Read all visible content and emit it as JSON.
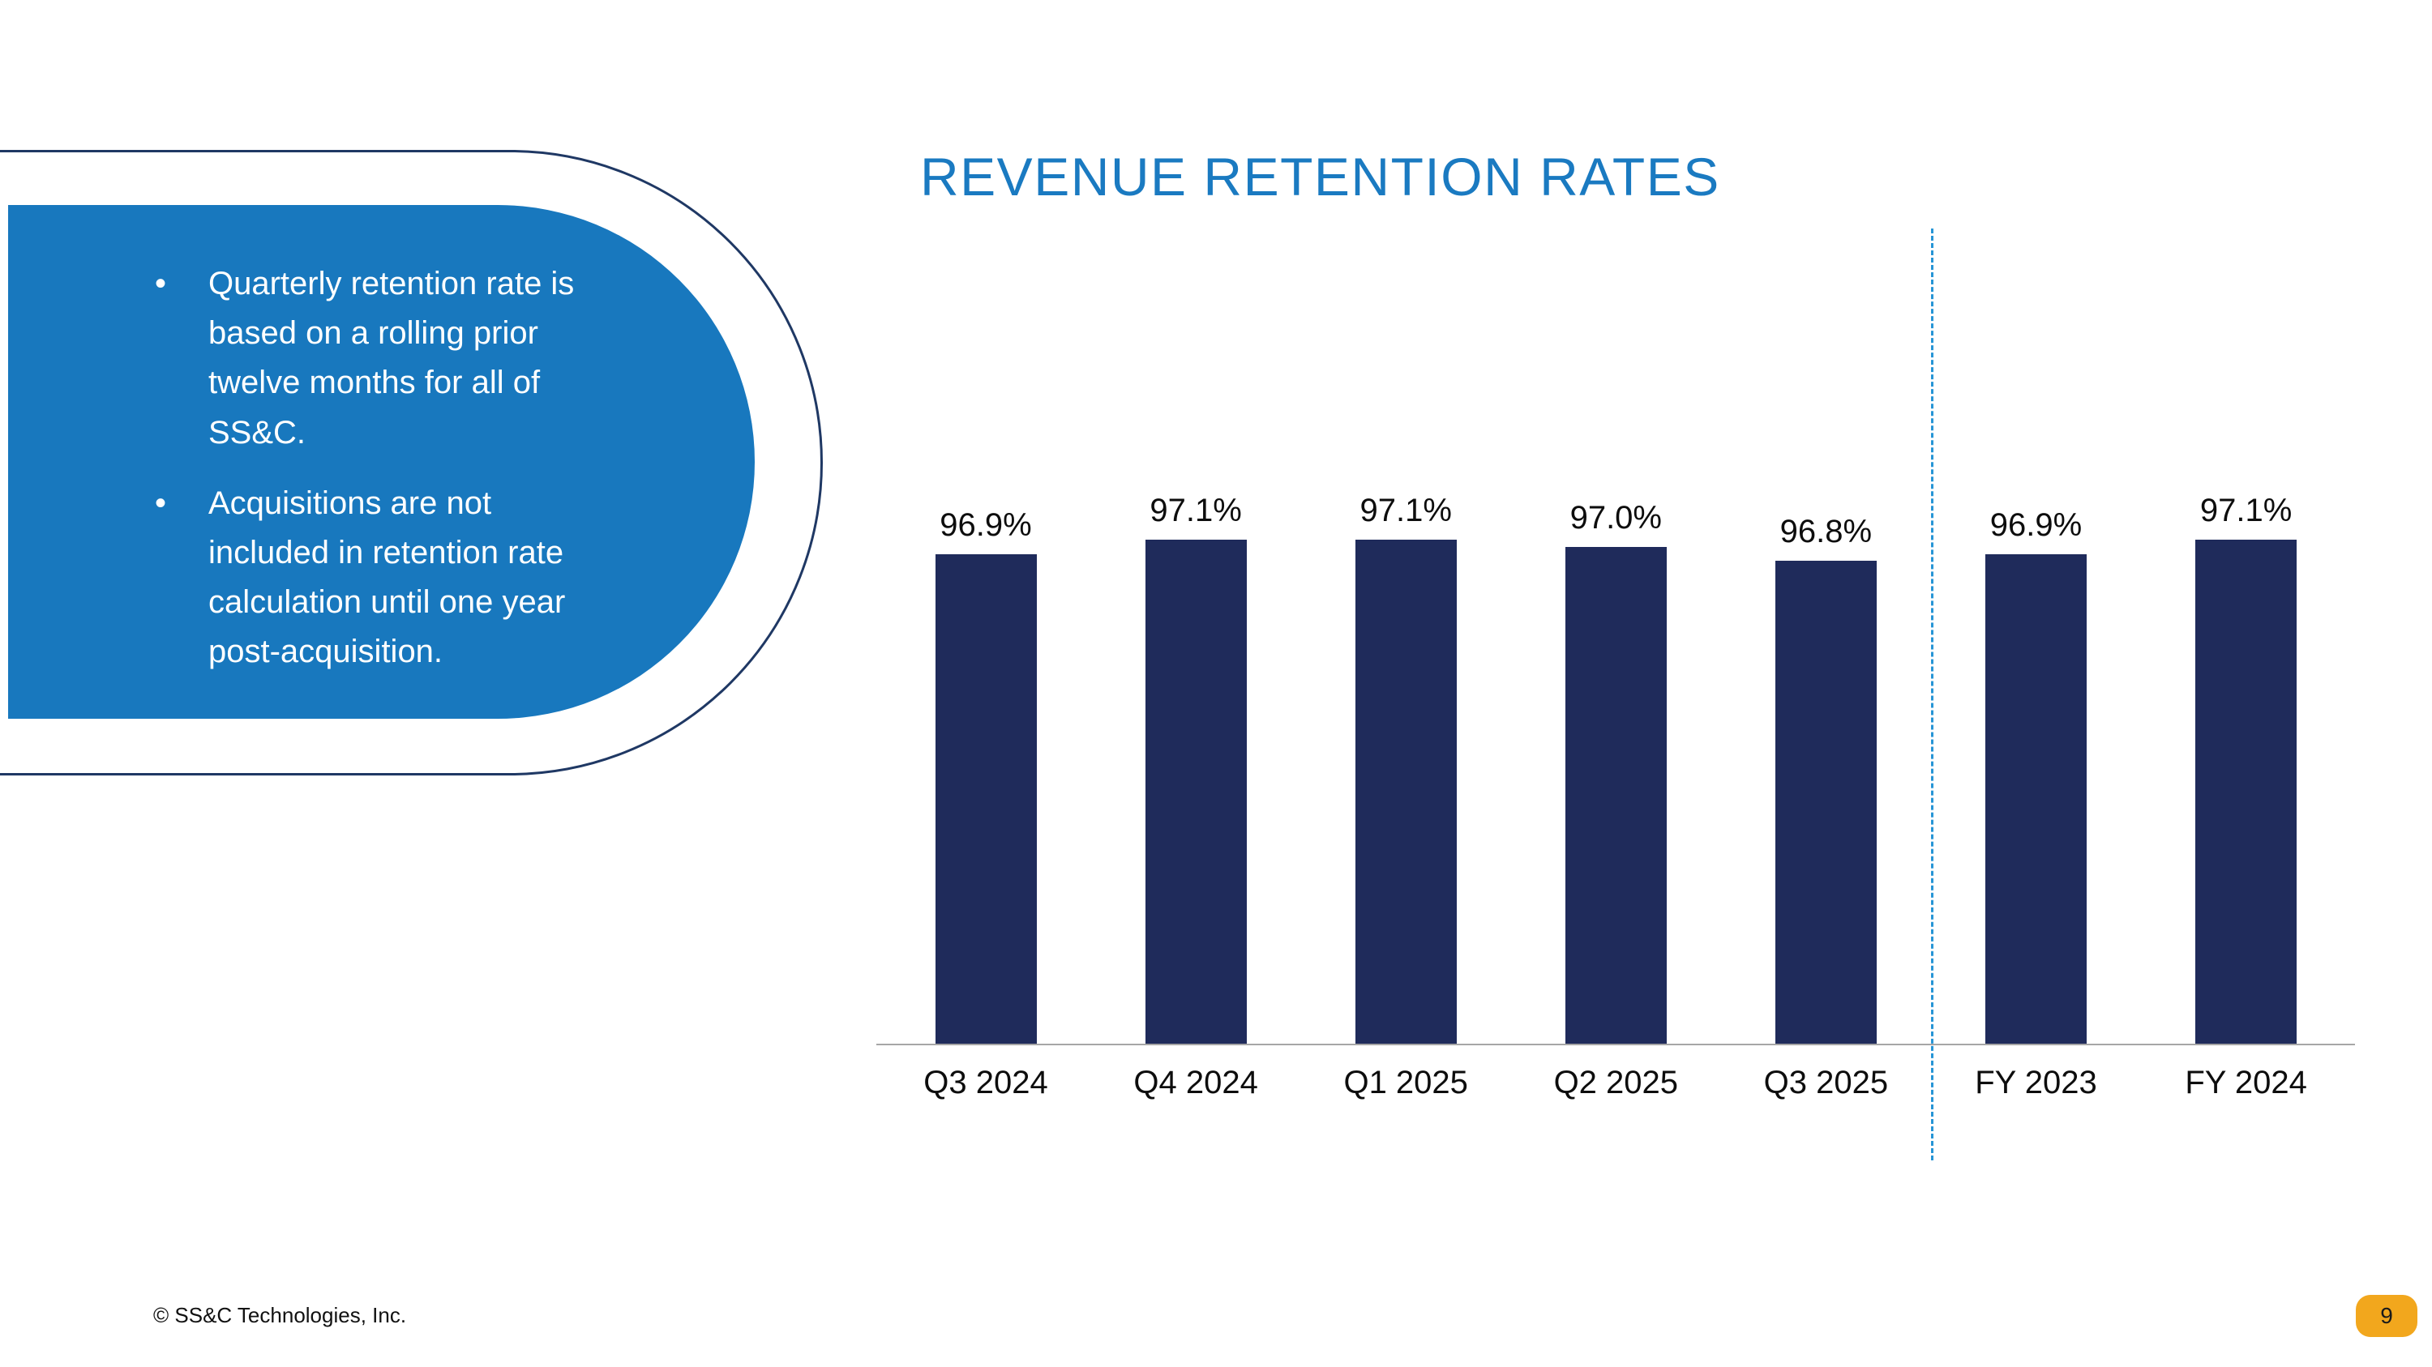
{
  "slide": {
    "title": "REVENUE RETENTION RATES",
    "footer": "© SS&C Technologies, Inc.",
    "page_number": "9"
  },
  "callout": {
    "bullets": [
      "Quarterly retention rate is\nbased on a rolling prior\ntwelve months for all of\nSS&C.",
      "Acquisitions are not\nincluded in retention rate\ncalculation until one year\npost-acquisition."
    ]
  },
  "colors": {
    "title_blue": "#1A7AC1",
    "callout_fill": "#1878BE",
    "callout_outline": "#1F3864",
    "bar_navy": "#1F2B5B",
    "divider_blue": "#2795D6",
    "baseline_gray": "#A6A6A6",
    "badge_orange": "#F2A71D"
  },
  "chart_data": {
    "type": "bar",
    "title": "REVENUE RETENTION RATES",
    "categories": [
      "Q3 2024",
      "Q4 2024",
      "Q1 2025",
      "Q2 2025",
      "Q3 2025",
      "FY 2023",
      "FY 2024"
    ],
    "values": [
      96.9,
      97.1,
      97.1,
      97.0,
      96.8,
      96.9,
      97.1
    ],
    "labels": [
      "96.9%",
      "97.1%",
      "97.1%",
      "97.0%",
      "96.8%",
      "96.9%",
      "97.1%"
    ],
    "xlabel": "",
    "ylabel": "",
    "ylim": [
      90,
      100
    ],
    "grid": false,
    "legend": false,
    "separator_after_index": 4,
    "notes": "Dashed divider separates quarterly retention rates from fiscal-year retention rates"
  }
}
